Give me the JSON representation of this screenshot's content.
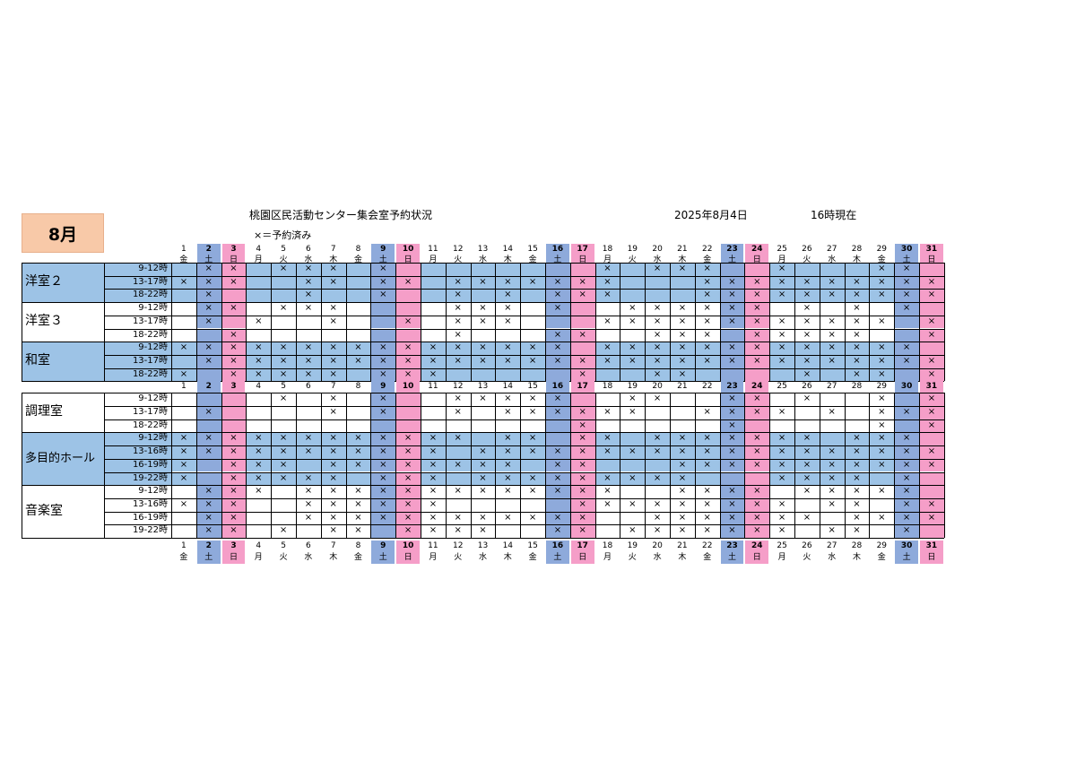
{
  "month_label": "8月",
  "title": "桃園区民活動センター集会室予約状況",
  "legend": "×＝予約済み",
  "as_of_date": "2025年8月4日",
  "as_of_time": "16時現在",
  "mark": "×",
  "colors": {
    "saturday": "#8eaadb",
    "sunday": "#f59ec8",
    "shaded_row": "#9dc3e6",
    "month_badge": "#f8c9a8"
  },
  "days": [
    "1",
    "2",
    "3",
    "4",
    "5",
    "6",
    "7",
    "8",
    "9",
    "10",
    "11",
    "12",
    "13",
    "14",
    "15",
    "16",
    "17",
    "18",
    "19",
    "20",
    "21",
    "22",
    "23",
    "24",
    "25",
    "26",
    "27",
    "28",
    "29",
    "30",
    "31"
  ],
  "weekdays": [
    "金",
    "土",
    "日",
    "月",
    "火",
    "水",
    "木",
    "金",
    "土",
    "日",
    "月",
    "火",
    "水",
    "木",
    "金",
    "土",
    "日",
    "月",
    "火",
    "水",
    "木",
    "金",
    "土",
    "日",
    "月",
    "火",
    "水",
    "木",
    "金",
    "土",
    "日"
  ],
  "sections": [
    {
      "rooms": [
        {
          "name": "洋室２",
          "shaded": true,
          "slots": [
            {
              "time": "9-12時",
              "marks": "-xx-xxx-x--------x-xxx--x---xx-"
            },
            {
              "time": "13-17時",
              "marks": "xxx--xx-xx-xxxxxxx---xxxxxxxxxx"
            },
            {
              "time": "18-22時",
              "marks": "-x---x--x--x-x-xxx---xxxxxxxxxx"
            }
          ]
        },
        {
          "name": "洋室３",
          "shaded": false,
          "slots": [
            {
              "time": "9-12時",
              "marks": "-xx-xxx----xxx-x--xxxxxx-x-x-x-"
            },
            {
              "time": "13-17時",
              "marks": "-x-x--x--x-xxx---xxxxxxxxxxxx-x"
            },
            {
              "time": "18-22時",
              "marks": "--x--------x---xx--xxx-xxxxx--x"
            }
          ]
        },
        {
          "name": "和室",
          "shaded": true,
          "slots": [
            {
              "time": "9-12時",
              "marks": "xxxxxxxxxxxxxxxx-xxxxxxxxxxxxx-"
            },
            {
              "time": "13-17時",
              "marks": "-xxxxxxxxxxxxxxxxxxxxxxxxxxxxxx"
            },
            {
              "time": "18-22時",
              "marks": "x-xxxxx-xxx-----x--xx----x-xx-x"
            }
          ]
        }
      ]
    },
    {
      "rooms": [
        {
          "name": "調理室",
          "shaded": false,
          "slots": [
            {
              "time": "9-12時",
              "marks": "----x-x-x--xxxxx--xx--xx-x--x-x"
            },
            {
              "time": "13-17時",
              "marks": "-x----x-x--x-xxxxxx--xxxx-x-xxx"
            },
            {
              "time": "18-22時",
              "marks": "----------------x-----x-----x-x"
            }
          ]
        },
        {
          "name": "多目的ホール",
          "shaded": true,
          "slots": [
            {
              "time": "9-12時",
              "marks": "xxxxxxxxxxxx-xx-xx-xxxxxxx-xxx-"
            },
            {
              "time": "13-16時",
              "marks": "xxxxxxxxxxx-xxxxxxxxxxxxxxxxxxx"
            },
            {
              "time": "16-19時",
              "marks": "x-xxx-xxxxxxxx-xx---xxxxxxxxxxx"
            },
            {
              "time": "19-22時",
              "marks": "x-xxxxx-xxx-xxxxxxxxx---xxxx-x-"
            }
          ]
        },
        {
          "name": "音楽室",
          "shaded": false,
          "slots": [
            {
              "time": "9-12時",
              "marks": "-xxx-xxxxxxxxxxxxx--xxxx-xxxxx-"
            },
            {
              "time": "13-16時",
              "marks": "xxx--xxxxxx-----xxxxxxxxx-xx-xx"
            },
            {
              "time": "16-19時",
              "marks": "-xx--xxxxxxxxxxxx--xxxxxxx-xxxx"
            },
            {
              "time": "19-22時",
              "marks": "-xx-x-xx-xxxx--xx-xxxxxxx-xx-x-"
            }
          ]
        }
      ]
    }
  ]
}
